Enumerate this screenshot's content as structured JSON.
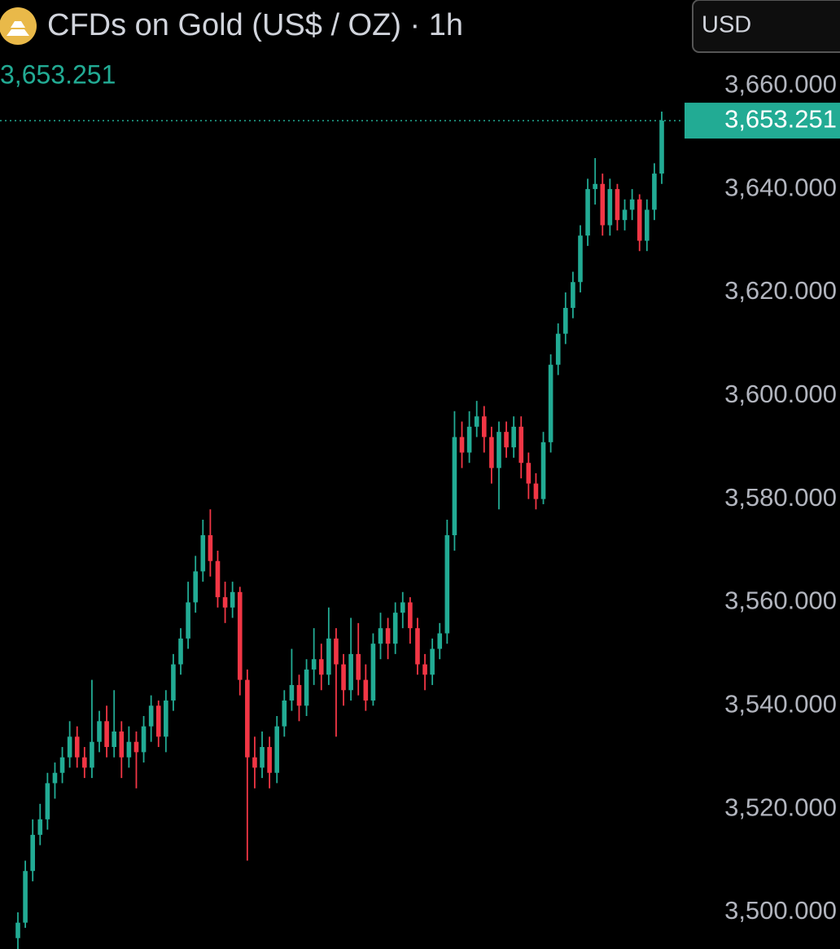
{
  "chart_data": {
    "type": "candlestick",
    "title": "CFDs on Gold (US$ / OZ) · 1h",
    "currency_button": "USD",
    "last_price": {
      "value": 3653.251,
      "label": "3,653.251"
    },
    "up_color": "#22ab94",
    "down_color": "#f23645",
    "ylim": [
      3492.9,
      3676.6
    ],
    "yticks": [
      {
        "value": 3660,
        "label": "3,660.000"
      },
      {
        "value": 3640,
        "label": "3,640.000"
      },
      {
        "value": 3620,
        "label": "3,620.000"
      },
      {
        "value": 3600,
        "label": "3,600.000"
      },
      {
        "value": 3580,
        "label": "3,580.000"
      },
      {
        "value": 3560,
        "label": "3,560.000"
      },
      {
        "value": 3540,
        "label": "3,540.000"
      },
      {
        "value": 3520,
        "label": "3,520.000"
      },
      {
        "value": 3500,
        "label": "3,500.000"
      }
    ],
    "open": [
      3495,
      3498,
      3508,
      3515,
      3518,
      3525,
      3527,
      3530,
      3534,
      3530,
      3528,
      3533,
      3537,
      3532,
      3535,
      3530,
      3533,
      3531,
      3536,
      3540,
      3534,
      3541,
      3548,
      3553,
      3560,
      3566,
      3573,
      3568,
      3561,
      3559,
      3562,
      3545,
      3530,
      3528,
      3532,
      3527,
      3536,
      3541,
      3544,
      3540,
      3547,
      3549,
      3546,
      3553,
      3548,
      3543,
      3550,
      3545,
      3541,
      3552,
      3555,
      3552,
      3558,
      3560,
      3555,
      3548,
      3546,
      3551,
      3554,
      3573,
      3592,
      3589,
      3594,
      3596,
      3592,
      3586,
      3593,
      3590,
      3594,
      3587,
      3583,
      3580,
      3591,
      3606,
      3612,
      3617,
      3622,
      3631,
      3640,
      3641,
      3633,
      3640,
      3634,
      3636,
      3638,
      3630,
      3636,
      3643
    ],
    "high": [
      3500,
      3510,
      3518,
      3521,
      3527,
      3529,
      3532,
      3537,
      3536,
      3532,
      3545,
      3539,
      3540,
      3543,
      3537,
      3536,
      3535,
      3538,
      3542,
      3541,
      3543,
      3550,
      3555,
      3564,
      3569,
      3576,
      3578,
      3570,
      3564,
      3564,
      3563,
      3547,
      3534,
      3535,
      3534,
      3538,
      3543,
      3551,
      3546,
      3549,
      3555,
      3552,
      3559,
      3555,
      3550,
      3557,
      3556,
      3548,
      3554,
      3558,
      3557,
      3560,
      3562,
      3561,
      3557,
      3550,
      3553,
      3556,
      3576,
      3597,
      3595,
      3597,
      3599,
      3598,
      3594,
      3595,
      3595,
      3596,
      3596,
      3589,
      3585,
      3593,
      3608,
      3614,
      3620,
      3624,
      3633,
      3642,
      3646,
      3643,
      3642,
      3641,
      3638,
      3640,
      3639,
      3638,
      3645,
      3655
    ],
    "low": [
      3490,
      3497,
      3506,
      3513,
      3516,
      3522,
      3525,
      3528,
      3528,
      3526,
      3526,
      3531,
      3530,
      3530,
      3526,
      3528,
      3524,
      3529,
      3533,
      3532,
      3531,
      3539,
      3546,
      3551,
      3558,
      3564,
      3565,
      3559,
      3556,
      3557,
      3542,
      3510,
      3524,
      3526,
      3524,
      3525,
      3534,
      3539,
      3537,
      3538,
      3544,
      3543,
      3544,
      3534,
      3540,
      3541,
      3542,
      3539,
      3540,
      3549,
      3549,
      3550,
      3555,
      3552,
      3546,
      3543,
      3544,
      3549,
      3552,
      3570,
      3586,
      3587,
      3592,
      3589,
      3583,
      3578,
      3588,
      3588,
      3584,
      3580,
      3578,
      3579,
      3589,
      3604,
      3610,
      3615,
      3620,
      3629,
      3637,
      3631,
      3631,
      3632,
      3632,
      3634,
      3628,
      3628,
      3634,
      3641
    ],
    "close": [
      3498,
      3508,
      3515,
      3518,
      3525,
      3527,
      3530,
      3534,
      3530,
      3528,
      3533,
      3537,
      3532,
      3535,
      3530,
      3533,
      3531,
      3536,
      3540,
      3534,
      3541,
      3548,
      3553,
      3560,
      3566,
      3573,
      3568,
      3561,
      3559,
      3562,
      3545,
      3530,
      3528,
      3532,
      3527,
      3536,
      3541,
      3544,
      3540,
      3547,
      3549,
      3546,
      3553,
      3548,
      3543,
      3550,
      3545,
      3541,
      3552,
      3555,
      3552,
      3558,
      3560,
      3555,
      3548,
      3546,
      3551,
      3554,
      3573,
      3592,
      3589,
      3594,
      3596,
      3592,
      3586,
      3593,
      3590,
      3594,
      3587,
      3583,
      3580,
      3591,
      3606,
      3612,
      3617,
      3622,
      3631,
      3640,
      3641,
      3633,
      3640,
      3634,
      3636,
      3638,
      3630,
      3636,
      3643,
      3653.251
    ]
  }
}
